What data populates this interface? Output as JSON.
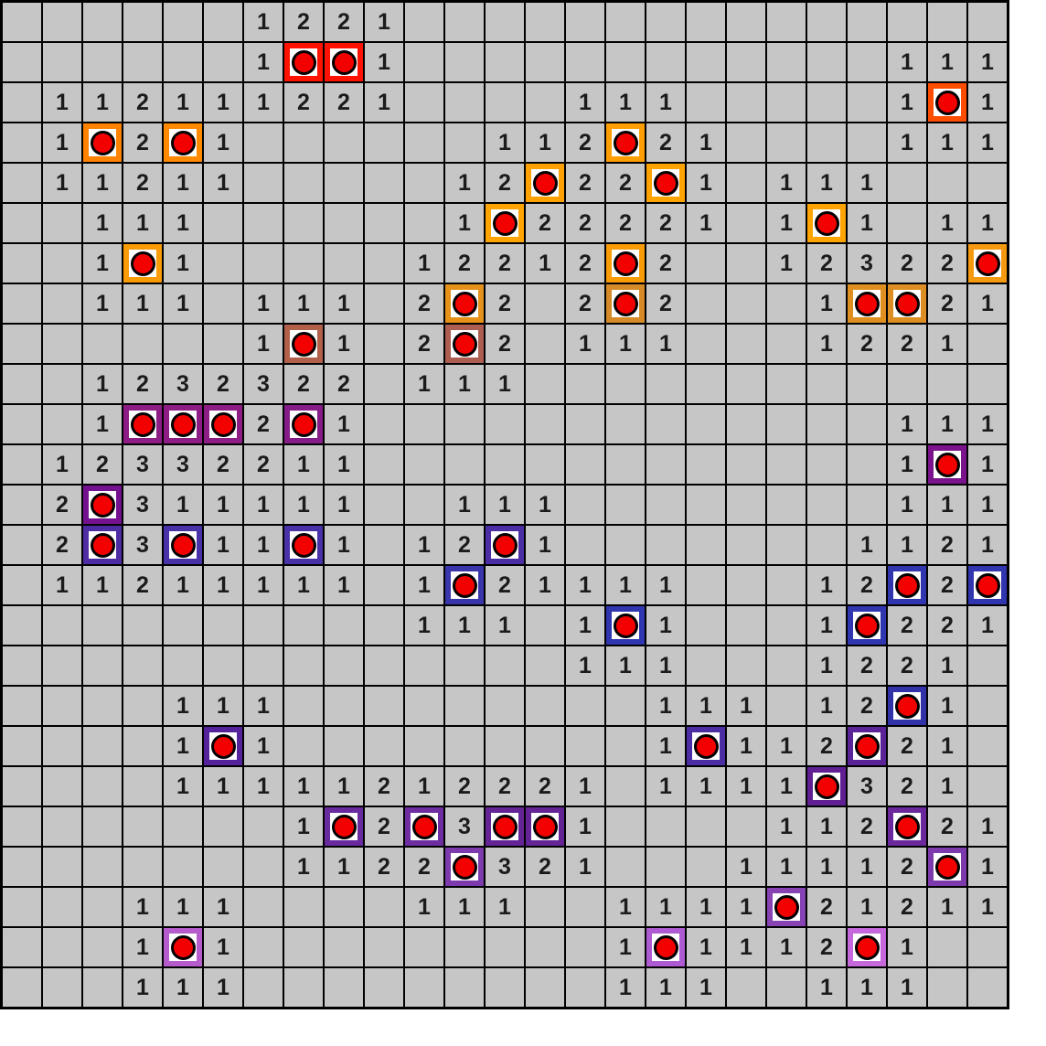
{
  "board": {
    "rows": 25,
    "cols": 25,
    "cell_rows": [
      "......1221...............",
      "......1**1............111",
      ".112111221....111.....1*1",
      ".1*2*1......112*21....111",
      ".11211.....12*22*1.111...",
      "..111......1*22221.1*1.11",
      "..1*1.....12212*2..12322*",
      "..111.111.2*2.2*2...1**21",
      "......1*1.2*2.111...1221.",
      "..1232322.111............",
      "..1***2*1.............111",
      ".12332211.............1*1",
      ".2*311111..111........111",
      ".2*3*11*1.12*1.......1121",
      ".11211111.1*21111...12*2*",
      "..........111.1*1...1*221",
      "..............111...1221.",
      "....111.........111.12*1.",
      "....1*1.........1*112*21.",
      "....11111212221.1111*321.",
      ".......1*2*3**1....112*21",
      ".......1122*321...11112*1",
      "...111....111..1111*21211",
      "...1*1.........1*1112*1..",
      "...111.........111..111.."
    ],
    "mines": [
      {
        "r": 1,
        "c": 7,
        "border": "#ff1200"
      },
      {
        "r": 1,
        "c": 8,
        "border": "#ff1200"
      },
      {
        "r": 2,
        "c": 23,
        "border": "#ff4d00"
      },
      {
        "r": 3,
        "c": 2,
        "border": "#ff8200"
      },
      {
        "r": 3,
        "c": 4,
        "border": "#ff8a00"
      },
      {
        "r": 3,
        "c": 15,
        "border": "#ff9e00"
      },
      {
        "r": 4,
        "c": 13,
        "border": "#ffa100"
      },
      {
        "r": 4,
        "c": 16,
        "border": "#ffa300"
      },
      {
        "r": 5,
        "c": 12,
        "border": "#ffa400"
      },
      {
        "r": 5,
        "c": 20,
        "border": "#ffa400"
      },
      {
        "r": 6,
        "c": 3,
        "border": "#fa9c06"
      },
      {
        "r": 6,
        "c": 15,
        "border": "#fa9c06"
      },
      {
        "r": 6,
        "c": 24,
        "border": "#f59a10"
      },
      {
        "r": 7,
        "c": 11,
        "border": "#e6921a"
      },
      {
        "r": 7,
        "c": 15,
        "border": "#d68a28"
      },
      {
        "r": 7,
        "c": 21,
        "border": "#df8f20"
      },
      {
        "r": 7,
        "c": 22,
        "border": "#dd8e22"
      },
      {
        "r": 8,
        "c": 7,
        "border": "#b2604a"
      },
      {
        "r": 8,
        "c": 11,
        "border": "#ae5e50"
      },
      {
        "r": 10,
        "c": 3,
        "border": "#8d1d84"
      },
      {
        "r": 10,
        "c": 4,
        "border": "#8d1d84"
      },
      {
        "r": 10,
        "c": 5,
        "border": "#8d1d84"
      },
      {
        "r": 10,
        "c": 7,
        "border": "#851c88"
      },
      {
        "r": 11,
        "c": 23,
        "border": "#7b148c"
      },
      {
        "r": 12,
        "c": 2,
        "border": "#741190"
      },
      {
        "r": 13,
        "c": 2,
        "border": "#4e2da4"
      },
      {
        "r": 13,
        "c": 4,
        "border": "#4931a8"
      },
      {
        "r": 13,
        "c": 7,
        "border": "#4931a8"
      },
      {
        "r": 13,
        "c": 12,
        "border": "#4b2da6"
      },
      {
        "r": 14,
        "c": 11,
        "border": "#3936ac"
      },
      {
        "r": 14,
        "c": 22,
        "border": "#3136ae"
      },
      {
        "r": 14,
        "c": 24,
        "border": "#3136ae"
      },
      {
        "r": 15,
        "c": 15,
        "border": "#3035b0"
      },
      {
        "r": 15,
        "c": 21,
        "border": "#3035b0"
      },
      {
        "r": 17,
        "c": 22,
        "border": "#3132a8"
      },
      {
        "r": 18,
        "c": 5,
        "border": "#54239c"
      },
      {
        "r": 18,
        "c": 17,
        "border": "#4c2da4"
      },
      {
        "r": 18,
        "c": 21,
        "border": "#5b2398"
      },
      {
        "r": 19,
        "c": 20,
        "border": "#611f94"
      },
      {
        "r": 20,
        "c": 8,
        "border": "#682a9e"
      },
      {
        "r": 20,
        "c": 10,
        "border": "#6e2da0"
      },
      {
        "r": 20,
        "c": 12,
        "border": "#642496"
      },
      {
        "r": 20,
        "c": 13,
        "border": "#642496"
      },
      {
        "r": 20,
        "c": 22,
        "border": "#6b289c"
      },
      {
        "r": 21,
        "c": 11,
        "border": "#7d3aac"
      },
      {
        "r": 21,
        "c": 23,
        "border": "#7d3aac"
      },
      {
        "r": 22,
        "c": 19,
        "border": "#8742b4"
      },
      {
        "r": 23,
        "c": 4,
        "border": "#b55bcc"
      },
      {
        "r": 23,
        "c": 16,
        "border": "#ae5ad2"
      },
      {
        "r": 23,
        "c": 21,
        "border": "#c468dc"
      }
    ]
  },
  "colors": {
    "page_bg": "#ffffff",
    "grid_line": "#000000",
    "cell_bg": "#c6c6c6",
    "number_color": "#1b1b1b",
    "mine_bg": "#ffffff",
    "mine_dot": "#f30000",
    "mine_dot_outline": "#000000",
    "mine_border_default": "#888888"
  }
}
